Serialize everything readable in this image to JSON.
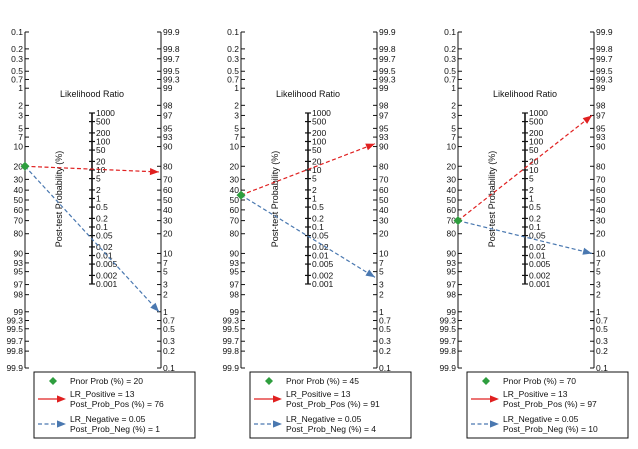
{
  "chart_data": [
    {
      "type": "nomogram",
      "prior_axis_ticks": [
        "0.1",
        "0.2",
        "0.3",
        "0.5",
        "0.7",
        "1",
        "2",
        "3",
        "5",
        "7",
        "10",
        "20",
        "30",
        "40",
        "50",
        "60",
        "70",
        "80",
        "90",
        "93",
        "95",
        "97",
        "98",
        "99",
        "99.3",
        "99.5",
        "99.7",
        "99.8",
        "99.9"
      ],
      "post_axis_ticks": [
        "99.9",
        "99.8",
        "99.7",
        "99.5",
        "99.3",
        "99",
        "98",
        "97",
        "95",
        "93",
        "90",
        "80",
        "70",
        "60",
        "50",
        "40",
        "30",
        "20",
        "10",
        "7",
        "5",
        "3",
        "2",
        "1",
        "0.7",
        "0.5",
        "0.3",
        "0.2",
        "0.1"
      ],
      "lr_title": "Likelihood Ratio",
      "lr_ticks": [
        "1000",
        "500",
        "200",
        "100",
        "50",
        "20",
        "10",
        "5",
        "2",
        "1",
        "0.5",
        "0.2",
        "0.1",
        "0.05",
        "0.02",
        "0.01",
        "0.005",
        "0.002",
        "0.001"
      ],
      "ylabel": "Post-test Probability (%)",
      "prior_prob": 20,
      "lr_positive": 13,
      "post_prob_pos": 76,
      "lr_negative": 0.05,
      "post_prob_neg": 1,
      "legend": {
        "prior": "Pnor Prob (%) = 20",
        "pos_line1": "LR_Positive = 13",
        "pos_line2": "Post_Prob_Pos (%) = 76",
        "neg_line1": "LR_Negative = 0.05",
        "neg_line2": "Post_Prob_Neg (%) = 1"
      }
    },
    {
      "type": "nomogram",
      "prior_axis_ticks": [
        "0.1",
        "0.2",
        "0.3",
        "0.5",
        "0.7",
        "1",
        "2",
        "3",
        "5",
        "7",
        "10",
        "20",
        "30",
        "40",
        "50",
        "60",
        "70",
        "80",
        "90",
        "93",
        "95",
        "97",
        "98",
        "99",
        "99.3",
        "99.5",
        "99.7",
        "99.8",
        "99.9"
      ],
      "post_axis_ticks": [
        "99.9",
        "99.8",
        "99.7",
        "99.5",
        "99.3",
        "99",
        "98",
        "97",
        "95",
        "93",
        "90",
        "80",
        "70",
        "60",
        "50",
        "40",
        "30",
        "20",
        "10",
        "7",
        "5",
        "3",
        "2",
        "1",
        "0.7",
        "0.5",
        "0.3",
        "0.2",
        "0.1"
      ],
      "lr_title": "Likelihood Ratio",
      "lr_ticks": [
        "1000",
        "500",
        "200",
        "100",
        "50",
        "20",
        "10",
        "5",
        "2",
        "1",
        "0.5",
        "0.2",
        "0.1",
        "0.05",
        "0.02",
        "0.01",
        "0.005",
        "0.002",
        "0.001"
      ],
      "ylabel": "Post-test Probability (%)",
      "prior_prob": 45,
      "lr_positive": 13,
      "post_prob_pos": 91,
      "lr_negative": 0.05,
      "post_prob_neg": 4,
      "legend": {
        "prior": "Pnor Prob (%) = 45",
        "pos_line1": "LR_Positive = 13",
        "pos_line2": "Post_Prob_Pos (%) = 91",
        "neg_line1": "LR_Negative = 0.05",
        "neg_line2": "Post_Prob_Neg (%) = 4"
      }
    },
    {
      "type": "nomogram",
      "prior_axis_ticks": [
        "0.1",
        "0.2",
        "0.3",
        "0.5",
        "0.7",
        "1",
        "2",
        "3",
        "5",
        "7",
        "10",
        "20",
        "30",
        "40",
        "50",
        "60",
        "70",
        "80",
        "90",
        "93",
        "95",
        "97",
        "98",
        "99",
        "99.3",
        "99.5",
        "99.7",
        "99.8",
        "99.9"
      ],
      "post_axis_ticks": [
        "99.9",
        "99.8",
        "99.7",
        "99.5",
        "99.3",
        "99",
        "98",
        "97",
        "95",
        "93",
        "90",
        "80",
        "70",
        "60",
        "50",
        "40",
        "30",
        "20",
        "10",
        "7",
        "5",
        "3",
        "2",
        "1",
        "0.7",
        "0.5",
        "0.3",
        "0.2",
        "0.1"
      ],
      "lr_title": "Likelihood Ratio",
      "lr_ticks": [
        "1000",
        "500",
        "200",
        "100",
        "50",
        "20",
        "10",
        "5",
        "2",
        "1",
        "0.5",
        "0.2",
        "0.1",
        "0.05",
        "0.02",
        "0.01",
        "0.005",
        "0.002",
        "0.001"
      ],
      "ylabel": "Post-test Probability (%)",
      "prior_prob": 70,
      "lr_positive": 13,
      "post_prob_pos": 97,
      "lr_negative": 0.05,
      "post_prob_neg": 10,
      "legend": {
        "prior": "Pnor Prob (%) = 70",
        "pos_line1": "LR_Positive = 13",
        "pos_line2": "Post_Prob_Pos (%) = 97",
        "neg_line1": "LR_Negative = 0.05",
        "neg_line2": "Post_Prob_Neg (%) = 10"
      }
    }
  ],
  "colors": {
    "prior_marker": "#2e9e3e",
    "positive_line": "#e02020",
    "negative_line": "#4a78b0",
    "axis": "#111111"
  }
}
